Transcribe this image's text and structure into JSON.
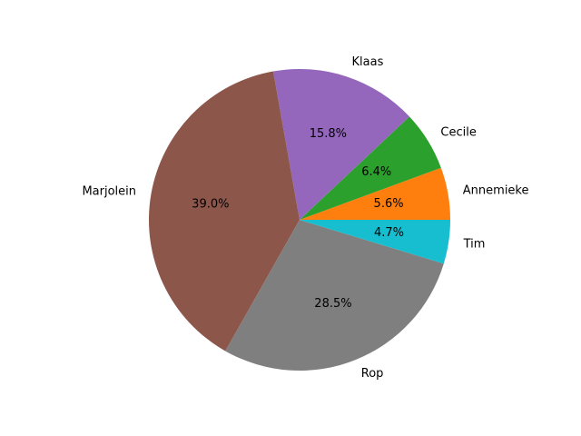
{
  "chart_data": {
    "type": "pie",
    "title": "",
    "start_angle_deg": 0,
    "direction": "counterclockwise",
    "slices": [
      {
        "label": "Annemieke",
        "value": 5.6,
        "pct_text": "5.6%",
        "color": "#ff7f0e"
      },
      {
        "label": "Cecile",
        "value": 6.4,
        "pct_text": "6.4%",
        "color": "#2ca02c"
      },
      {
        "label": "Klaas",
        "value": 15.8,
        "pct_text": "15.8%",
        "color": "#9467bd"
      },
      {
        "label": "Marjolein",
        "value": 39.0,
        "pct_text": "39.0%",
        "color": "#8c564b"
      },
      {
        "label": "Rop",
        "value": 28.5,
        "pct_text": "28.5%",
        "color": "#7f7f7f"
      },
      {
        "label": "Tim",
        "value": 4.7,
        "pct_text": "4.7%",
        "color": "#17becf"
      }
    ]
  }
}
